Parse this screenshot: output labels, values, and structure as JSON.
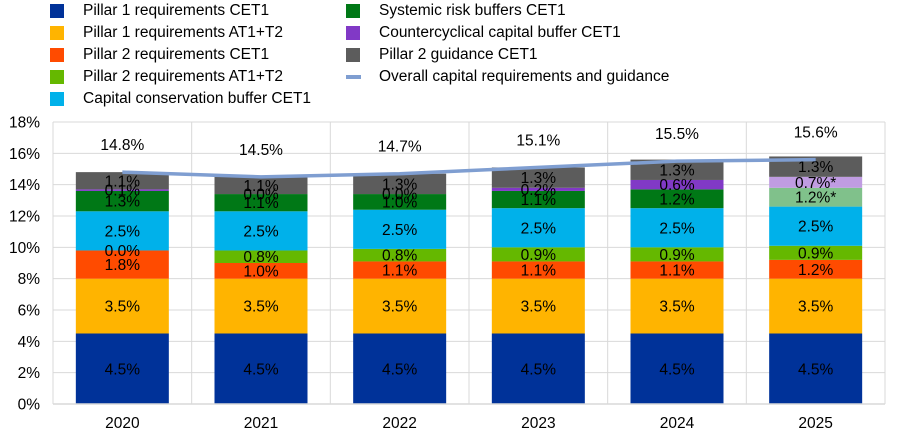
{
  "chart_data": {
    "type": "bar",
    "stacked": true,
    "title": "",
    "xlabel": "",
    "ylabel": "",
    "ylim": [
      0,
      18
    ],
    "yticks": [
      "0%",
      "2%",
      "4%",
      "6%",
      "8%",
      "10%",
      "12%",
      "14%",
      "16%",
      "18%"
    ],
    "grid": true,
    "legend_position": "top",
    "categories": [
      "2020",
      "2021",
      "2022",
      "2023",
      "2024",
      "2025"
    ],
    "series": [
      {
        "name": "Pillar 1 requirements CET1",
        "color": "#003299",
        "values": [
          4.5,
          4.5,
          4.5,
          4.5,
          4.5,
          4.5
        ],
        "labels": [
          "4.5%",
          "4.5%",
          "4.5%",
          "4.5%",
          "4.5%",
          "4.5%"
        ]
      },
      {
        "name": "Pillar 1 requirements AT1+T2",
        "color": "#FFB400",
        "values": [
          3.5,
          3.5,
          3.5,
          3.5,
          3.5,
          3.5
        ],
        "labels": [
          "3.5%",
          "3.5%",
          "3.5%",
          "3.5%",
          "3.5%",
          "3.5%"
        ]
      },
      {
        "name": "Pillar 2 requirements CET1",
        "color": "#FF4B00",
        "values": [
          1.8,
          1.0,
          1.1,
          1.1,
          1.1,
          1.2
        ],
        "labels": [
          "1.8%",
          "1.0%",
          "1.1%",
          "1.1%",
          "1.1%",
          "1.2%"
        ]
      },
      {
        "name": "Pillar 2 requirements AT1+T2",
        "color": "#65B800",
        "values": [
          0.0,
          0.8,
          0.8,
          0.9,
          0.9,
          0.9
        ],
        "labels": [
          "0.0%",
          "0.8%",
          "0.8%",
          "0.9%",
          "0.9%",
          "0.9%"
        ]
      },
      {
        "name": "Capital conservation buffer CET1",
        "color": "#00B1EA",
        "values": [
          2.5,
          2.5,
          2.5,
          2.5,
          2.5,
          2.5
        ],
        "labels": [
          "2.5%",
          "2.5%",
          "2.5%",
          "2.5%",
          "2.5%",
          "2.5%"
        ]
      },
      {
        "name": "Systemic risk buffers CET1",
        "color": "#007816",
        "values": [
          1.3,
          1.1,
          1.0,
          1.1,
          1.2,
          1.2
        ],
        "labels": [
          "1.3%",
          "1.1%",
          "1.0%",
          "1.1%",
          "1.2%",
          "1.2%*"
        ],
        "highlight_colors": {
          "2025": "#80C18B"
        }
      },
      {
        "name": "Countercyclical capital buffer CET1",
        "color": "#8139C6",
        "values": [
          0.1,
          0.0,
          0.0,
          0.2,
          0.6,
          0.7
        ],
        "labels": [
          "0.1%",
          "0.0%",
          "0.0%",
          "0.2%",
          "0.6%",
          "0.7%*"
        ],
        "highlight_colors": {
          "2025": "#C09CE2"
        }
      },
      {
        "name": "Pillar 2 guidance CET1",
        "color": "#5C5C5C",
        "values": [
          1.1,
          1.1,
          1.3,
          1.3,
          1.3,
          1.3
        ],
        "labels": [
          "1.1%",
          "1.1%",
          "1.3%",
          "1.3%",
          "1.3%",
          "1.3%"
        ]
      }
    ],
    "line_series": {
      "name": "Overall capital requirements and guidance",
      "color": "#7F9ED1",
      "values": [
        14.8,
        14.5,
        14.7,
        15.1,
        15.5,
        15.6
      ],
      "labels": [
        "14.8%",
        "14.5%",
        "14.7%",
        "15.1%",
        "15.5%",
        "15.6%"
      ]
    }
  },
  "legend": {
    "items": [
      {
        "label": "Pillar 1 requirements CET1",
        "color": "#003299",
        "kind": "box"
      },
      {
        "label": "Pillar 1 requirements AT1+T2",
        "color": "#FFB400",
        "kind": "box"
      },
      {
        "label": "Pillar 2 requirements CET1",
        "color": "#FF4B00",
        "kind": "box"
      },
      {
        "label": "Pillar 2 requirements AT1+T2",
        "color": "#65B800",
        "kind": "box"
      },
      {
        "label": "Capital conservation buffer CET1",
        "color": "#00B1EA",
        "kind": "box"
      },
      {
        "label": "Systemic risk buffers CET1",
        "color": "#007816",
        "kind": "box"
      },
      {
        "label": "Countercyclical capital buffer CET1",
        "color": "#8139C6",
        "kind": "box"
      },
      {
        "label": "Pillar 2 guidance CET1",
        "color": "#5C5C5C",
        "kind": "box"
      },
      {
        "label": "Overall capital requirements and guidance",
        "color": "#7F9ED1",
        "kind": "line"
      }
    ]
  }
}
